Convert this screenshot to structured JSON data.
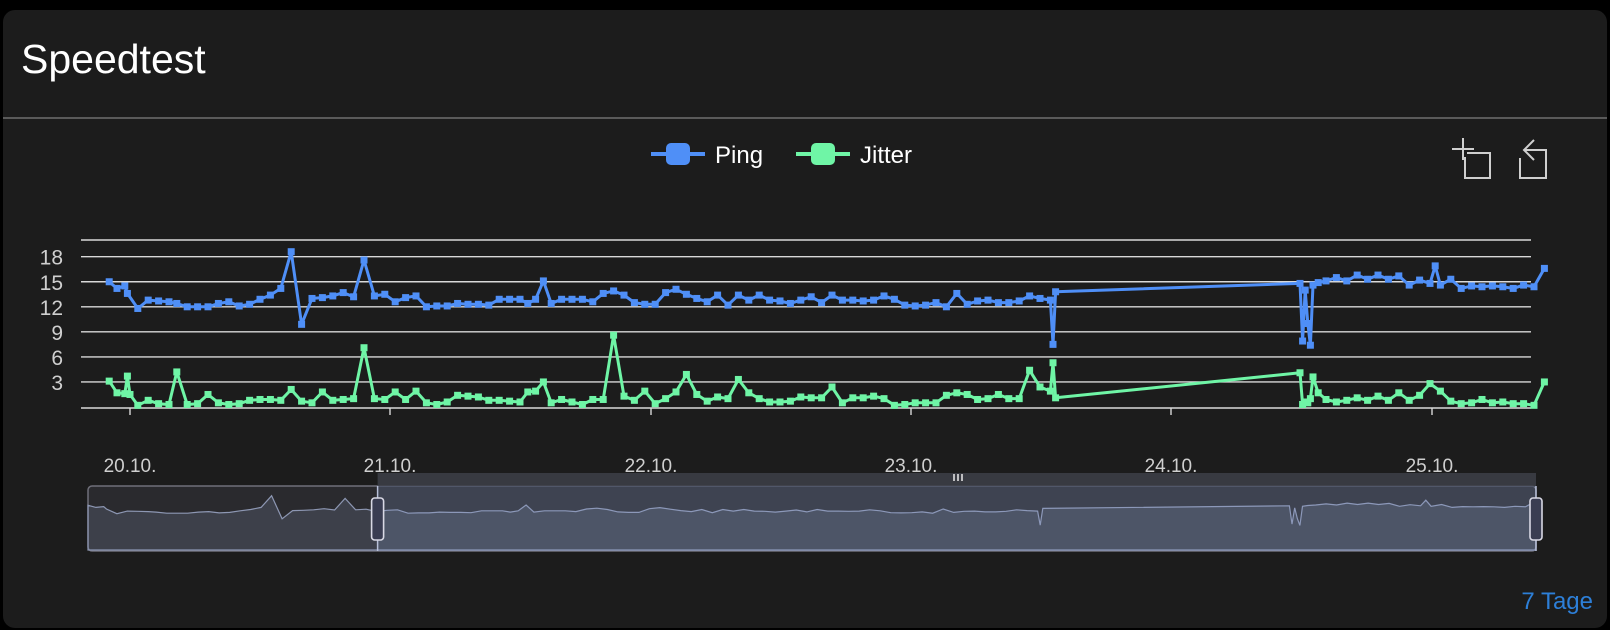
{
  "card": {
    "title": "Speedtest",
    "footer_link": "7 Tage"
  },
  "toolbar": {
    "zoom_icon": "zoom-area-icon",
    "restore_icon": "restore-zoom-icon"
  },
  "colors": {
    "ping": "#4f8ff7",
    "jitter": "#6ff5a6",
    "grid": "#d9d9d9",
    "axis_label": "#cfcfcf",
    "background": "#1c1c1c"
  },
  "chart_data": {
    "type": "line",
    "title": "",
    "xlabel": "",
    "ylabel": "",
    "x_range": [
      "20.10.",
      "25.10."
    ],
    "ylim": [
      0,
      20
    ],
    "yticks": [
      3,
      6,
      9,
      12,
      15,
      18
    ],
    "xticks": [
      "20.10.",
      "21.10.",
      "22.10.",
      "23.10.",
      "24.10.",
      "25.10."
    ],
    "grid": true,
    "legend_position": "top-center",
    "series": [
      {
        "name": "Ping",
        "points": [
          [
            -0.08,
            15.0
          ],
          [
            -0.05,
            14.2
          ],
          [
            -0.02,
            14.5
          ],
          [
            -0.01,
            13.6
          ],
          [
            0.03,
            11.8
          ],
          [
            0.07,
            12.8
          ],
          [
            0.11,
            12.7
          ],
          [
            0.15,
            12.6
          ],
          [
            0.18,
            12.4
          ],
          [
            0.22,
            12.0
          ],
          [
            0.26,
            12.0
          ],
          [
            0.3,
            12.0
          ],
          [
            0.34,
            12.4
          ],
          [
            0.38,
            12.6
          ],
          [
            0.42,
            12.1
          ],
          [
            0.46,
            12.3
          ],
          [
            0.5,
            12.9
          ],
          [
            0.54,
            13.4
          ],
          [
            0.58,
            14.2
          ],
          [
            0.62,
            18.6
          ],
          [
            0.66,
            9.9
          ],
          [
            0.7,
            13.0
          ],
          [
            0.74,
            13.1
          ],
          [
            0.78,
            13.3
          ],
          [
            0.82,
            13.7
          ],
          [
            0.86,
            13.2
          ],
          [
            0.9,
            17.6
          ],
          [
            0.94,
            13.3
          ],
          [
            0.98,
            13.5
          ],
          [
            1.02,
            12.6
          ],
          [
            1.06,
            13.1
          ],
          [
            1.1,
            13.3
          ],
          [
            1.14,
            12.0
          ],
          [
            1.18,
            12.1
          ],
          [
            1.22,
            12.1
          ],
          [
            1.26,
            12.4
          ],
          [
            1.3,
            12.3
          ],
          [
            1.34,
            12.3
          ],
          [
            1.38,
            12.2
          ],
          [
            1.42,
            12.9
          ],
          [
            1.46,
            12.9
          ],
          [
            1.5,
            12.9
          ],
          [
            1.53,
            12.4
          ],
          [
            1.56,
            12.9
          ],
          [
            1.59,
            15.1
          ],
          [
            1.62,
            12.4
          ],
          [
            1.66,
            12.9
          ],
          [
            1.7,
            12.9
          ],
          [
            1.74,
            12.9
          ],
          [
            1.78,
            12.6
          ],
          [
            1.82,
            13.6
          ],
          [
            1.86,
            13.9
          ],
          [
            1.9,
            13.4
          ],
          [
            1.94,
            12.5
          ],
          [
            1.98,
            12.3
          ],
          [
            2.02,
            12.3
          ],
          [
            2.06,
            13.7
          ],
          [
            2.1,
            14.1
          ],
          [
            2.14,
            13.5
          ],
          [
            2.18,
            13.0
          ],
          [
            2.22,
            12.6
          ],
          [
            2.26,
            13.4
          ],
          [
            2.3,
            12.2
          ],
          [
            2.34,
            13.4
          ],
          [
            2.38,
            12.8
          ],
          [
            2.42,
            13.4
          ],
          [
            2.46,
            12.8
          ],
          [
            2.5,
            12.7
          ],
          [
            2.54,
            12.4
          ],
          [
            2.58,
            12.8
          ],
          [
            2.62,
            13.2
          ],
          [
            2.66,
            12.5
          ],
          [
            2.7,
            13.4
          ],
          [
            2.74,
            12.8
          ],
          [
            2.78,
            12.8
          ],
          [
            2.82,
            12.7
          ],
          [
            2.86,
            12.8
          ],
          [
            2.9,
            13.3
          ],
          [
            2.94,
            12.9
          ],
          [
            2.98,
            12.2
          ],
          [
            3.02,
            12.1
          ],
          [
            3.06,
            12.2
          ],
          [
            3.1,
            12.5
          ],
          [
            3.14,
            12.0
          ],
          [
            3.18,
            13.6
          ],
          [
            3.22,
            12.3
          ],
          [
            3.26,
            12.7
          ],
          [
            3.3,
            12.8
          ],
          [
            3.34,
            12.5
          ],
          [
            3.38,
            12.5
          ],
          [
            3.42,
            12.7
          ],
          [
            3.46,
            13.3
          ],
          [
            3.5,
            13.0
          ],
          [
            3.54,
            12.8
          ],
          [
            3.55,
            7.5
          ],
          [
            3.56,
            13.8
          ],
          [
            4.5,
            14.8
          ],
          [
            4.51,
            7.9
          ],
          [
            4.52,
            14.0
          ],
          [
            4.53,
            10.0
          ],
          [
            4.54,
            7.4
          ],
          [
            4.55,
            14.6
          ],
          [
            4.57,
            14.9
          ],
          [
            4.6,
            15.1
          ],
          [
            4.64,
            15.5
          ],
          [
            4.68,
            15.1
          ],
          [
            4.72,
            15.8
          ],
          [
            4.76,
            15.3
          ],
          [
            4.8,
            15.8
          ],
          [
            4.84,
            15.3
          ],
          [
            4.88,
            15.7
          ],
          [
            4.92,
            14.6
          ],
          [
            4.96,
            15.2
          ],
          [
            5.0,
            14.8
          ],
          [
            5.02,
            16.9
          ],
          [
            5.04,
            14.6
          ],
          [
            5.08,
            15.3
          ],
          [
            5.12,
            14.2
          ],
          [
            5.16,
            14.5
          ],
          [
            5.2,
            14.4
          ],
          [
            5.24,
            14.5
          ],
          [
            5.28,
            14.4
          ],
          [
            5.32,
            14.2
          ],
          [
            5.36,
            14.6
          ],
          [
            5.4,
            14.4
          ],
          [
            5.44,
            16.6
          ]
        ]
      },
      {
        "name": "Jitter",
        "points": [
          [
            -0.08,
            3.1
          ],
          [
            -0.05,
            1.7
          ],
          [
            -0.02,
            1.6
          ],
          [
            -0.01,
            3.7
          ],
          [
            0.0,
            1.5
          ],
          [
            0.03,
            0.2
          ],
          [
            0.07,
            0.8
          ],
          [
            0.11,
            0.4
          ],
          [
            0.15,
            0.3
          ],
          [
            0.18,
            4.2
          ],
          [
            0.22,
            0.3
          ],
          [
            0.26,
            0.4
          ],
          [
            0.3,
            1.5
          ],
          [
            0.34,
            0.5
          ],
          [
            0.38,
            0.3
          ],
          [
            0.42,
            0.4
          ],
          [
            0.46,
            0.8
          ],
          [
            0.5,
            0.9
          ],
          [
            0.54,
            0.9
          ],
          [
            0.58,
            0.8
          ],
          [
            0.62,
            2.1
          ],
          [
            0.66,
            0.7
          ],
          [
            0.7,
            0.5
          ],
          [
            0.74,
            1.8
          ],
          [
            0.78,
            0.8
          ],
          [
            0.82,
            0.9
          ],
          [
            0.86,
            1.0
          ],
          [
            0.9,
            7.1
          ],
          [
            0.94,
            1.0
          ],
          [
            0.98,
            0.9
          ],
          [
            1.02,
            1.8
          ],
          [
            1.06,
            0.9
          ],
          [
            1.1,
            1.9
          ],
          [
            1.14,
            0.5
          ],
          [
            1.18,
            0.3
          ],
          [
            1.22,
            0.6
          ],
          [
            1.26,
            1.4
          ],
          [
            1.3,
            1.3
          ],
          [
            1.34,
            1.2
          ],
          [
            1.38,
            0.8
          ],
          [
            1.42,
            0.8
          ],
          [
            1.46,
            0.7
          ],
          [
            1.5,
            0.6
          ],
          [
            1.53,
            1.8
          ],
          [
            1.56,
            1.9
          ],
          [
            1.59,
            3.0
          ],
          [
            1.62,
            0.5
          ],
          [
            1.66,
            0.9
          ],
          [
            1.7,
            0.6
          ],
          [
            1.74,
            0.3
          ],
          [
            1.78,
            0.9
          ],
          [
            1.82,
            0.9
          ],
          [
            1.86,
            8.6
          ],
          [
            1.9,
            1.3
          ],
          [
            1.94,
            0.8
          ],
          [
            1.98,
            1.9
          ],
          [
            2.02,
            0.4
          ],
          [
            2.06,
            1.0
          ],
          [
            2.1,
            1.8
          ],
          [
            2.14,
            3.9
          ],
          [
            2.18,
            1.5
          ],
          [
            2.22,
            0.7
          ],
          [
            2.26,
            1.2
          ],
          [
            2.3,
            1.0
          ],
          [
            2.34,
            3.3
          ],
          [
            2.38,
            1.7
          ],
          [
            2.42,
            1.0
          ],
          [
            2.46,
            0.6
          ],
          [
            2.5,
            0.6
          ],
          [
            2.54,
            0.7
          ],
          [
            2.58,
            1.2
          ],
          [
            2.62,
            1.1
          ],
          [
            2.66,
            1.1
          ],
          [
            2.7,
            2.4
          ],
          [
            2.74,
            0.5
          ],
          [
            2.78,
            1.1
          ],
          [
            2.82,
            1.1
          ],
          [
            2.86,
            1.3
          ],
          [
            2.9,
            1.0
          ],
          [
            2.94,
            0.2
          ],
          [
            2.98,
            0.3
          ],
          [
            3.02,
            0.5
          ],
          [
            3.06,
            0.5
          ],
          [
            3.1,
            0.5
          ],
          [
            3.14,
            1.4
          ],
          [
            3.18,
            1.7
          ],
          [
            3.22,
            1.5
          ],
          [
            3.26,
            0.9
          ],
          [
            3.3,
            1.0
          ],
          [
            3.34,
            1.5
          ],
          [
            3.38,
            1.0
          ],
          [
            3.42,
            1.0
          ],
          [
            3.46,
            4.4
          ],
          [
            3.5,
            2.4
          ],
          [
            3.54,
            1.9
          ],
          [
            3.55,
            5.3
          ],
          [
            3.56,
            1.1
          ],
          [
            4.5,
            4.1
          ],
          [
            4.51,
            0.3
          ],
          [
            4.52,
            0.6
          ],
          [
            4.53,
            0.5
          ],
          [
            4.54,
            1.0
          ],
          [
            4.55,
            3.6
          ],
          [
            4.57,
            1.7
          ],
          [
            4.6,
            0.9
          ],
          [
            4.64,
            0.6
          ],
          [
            4.68,
            0.8
          ],
          [
            4.72,
            1.1
          ],
          [
            4.76,
            0.8
          ],
          [
            4.8,
            1.3
          ],
          [
            4.84,
            0.8
          ],
          [
            4.88,
            1.7
          ],
          [
            4.92,
            0.8
          ],
          [
            4.96,
            1.4
          ],
          [
            5.0,
            2.8
          ],
          [
            5.04,
            1.9
          ],
          [
            5.08,
            0.7
          ],
          [
            5.12,
            0.4
          ],
          [
            5.16,
            0.5
          ],
          [
            5.2,
            0.9
          ],
          [
            5.24,
            0.5
          ],
          [
            5.28,
            0.6
          ],
          [
            5.32,
            0.4
          ],
          [
            5.36,
            0.4
          ],
          [
            5.4,
            0.2
          ],
          [
            5.44,
            3.0
          ]
        ]
      }
    ],
    "datazoom": {
      "start_percent": 20,
      "end_percent": 100
    }
  }
}
